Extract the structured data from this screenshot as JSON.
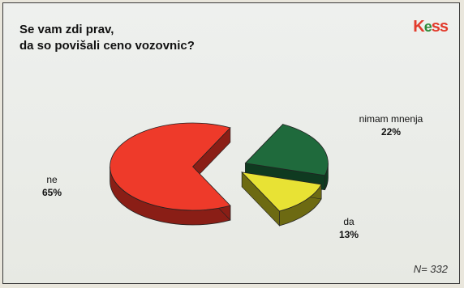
{
  "logo": {
    "k": "K",
    "e": "e",
    "ss": "ss"
  },
  "chart_data": {
    "type": "pie",
    "title_lines": [
      "Se vam zdi prav,",
      "da so povišali ceno vozovnic?"
    ],
    "slices": [
      {
        "label": "ne",
        "value": 65,
        "value_label": "65%",
        "color": "#ee3a2a",
        "side": "#8a1e16"
      },
      {
        "label": "nimam mnenja",
        "value": 22,
        "value_label": "22%",
        "color": "#1f6a3c",
        "side": "#0f3a20"
      },
      {
        "label": "da",
        "value": 13,
        "value_label": "13%",
        "color": "#e8e234",
        "side": "#6d6a12"
      }
    ],
    "sample_note": "N= 332"
  }
}
